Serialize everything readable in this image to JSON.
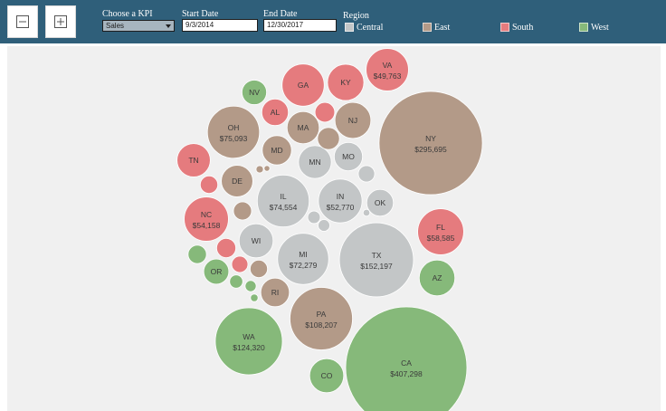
{
  "toolbar": {
    "zoom_out_icon": "minus-square-icon",
    "zoom_in_icon": "plus-square-icon",
    "kpi_label": "Choose a KPI",
    "kpi_value": "Sales",
    "start_label": "Start Date",
    "start_value": "9/3/2014",
    "end_label": "End Date",
    "end_value": "12/30/2017",
    "region_label": "Region"
  },
  "legend": [
    {
      "name": "Central",
      "color": "#c3c6c7"
    },
    {
      "name": "East",
      "color": "#b39a88"
    },
    {
      "name": "South",
      "color": "#e57b7e"
    },
    {
      "name": "West",
      "color": "#86b97a"
    }
  ],
  "chart_data": {
    "type": "bubble",
    "measure": "Sales",
    "bubbles": [
      {
        "state": "CA",
        "region": "West",
        "sales_label": "$407,298",
        "sales": 407298
      },
      {
        "state": "NY",
        "region": "East",
        "sales_label": "$295,695",
        "sales": 295695
      },
      {
        "state": "TX",
        "region": "Central",
        "sales_label": "$152,197",
        "sales": 152197
      },
      {
        "state": "WA",
        "region": "West",
        "sales_label": "$124,320",
        "sales": 124320
      },
      {
        "state": "PA",
        "region": "East",
        "sales_label": "$108,207",
        "sales": 108207
      },
      {
        "state": "OH",
        "region": "East",
        "sales_label": "$75,093",
        "sales": 75093
      },
      {
        "state": "IL",
        "region": "Central",
        "sales_label": "$74,554",
        "sales": 74554
      },
      {
        "state": "MI",
        "region": "Central",
        "sales_label": "$72,279",
        "sales": 72279
      },
      {
        "state": "FL",
        "region": "South",
        "sales_label": "$58,585",
        "sales": 58585
      },
      {
        "state": "NC",
        "region": "South",
        "sales_label": "$54,158",
        "sales": 54158
      },
      {
        "state": "IN",
        "region": "Central",
        "sales_label": "$52,770",
        "sales": 52770
      },
      {
        "state": "VA",
        "region": "South",
        "sales_label": "$49,763",
        "sales": 49763
      },
      {
        "state": "GA",
        "region": "South",
        "sales_label": "",
        "sales": 49096
      },
      {
        "state": "KY",
        "region": "South",
        "sales_label": "",
        "sales": 36592
      },
      {
        "state": "NJ",
        "region": "East",
        "sales_label": "",
        "sales": 35764
      },
      {
        "state": "MA",
        "region": "East",
        "sales_label": "",
        "sales": 28634
      },
      {
        "state": "TN",
        "region": "South",
        "sales_label": "",
        "sales": 30662
      },
      {
        "state": "AZ",
        "region": "West",
        "sales_label": "",
        "sales": 35282
      },
      {
        "state": "DE",
        "region": "East",
        "sales_label": "",
        "sales": 27451
      },
      {
        "state": "WI",
        "region": "Central",
        "sales_label": "",
        "sales": 32115
      },
      {
        "state": "MN",
        "region": "Central",
        "sales_label": "",
        "sales": 29863
      },
      {
        "state": "MD",
        "region": "East",
        "sales_label": "",
        "sales": 23706
      },
      {
        "state": "CO",
        "region": "West",
        "sales_label": "",
        "sales": 32108
      },
      {
        "state": "MO",
        "region": "Central",
        "sales_label": "",
        "sales": 22205
      },
      {
        "state": "OK",
        "region": "Central",
        "sales_label": "",
        "sales": 19683
      },
      {
        "state": "AL",
        "region": "South",
        "sales_label": "",
        "sales": 19511
      },
      {
        "state": "OR",
        "region": "West",
        "sales_label": "",
        "sales": 17431
      },
      {
        "state": "NV",
        "region": "West",
        "sales_label": "",
        "sales": 16729
      },
      {
        "state": "RI",
        "region": "East",
        "sales_label": "",
        "sales": 22628
      },
      {
        "state": "",
        "region": "South",
        "sales_label": "",
        "sales": 10771
      },
      {
        "state": "",
        "region": "South",
        "sales_label": "",
        "sales": 10172
      },
      {
        "state": "",
        "region": "South",
        "sales_label": "",
        "sales": 8481
      },
      {
        "state": "",
        "region": "South",
        "sales_label": "",
        "sales": 7292
      },
      {
        "state": "",
        "region": "East",
        "sales_label": "",
        "sales": 13384
      },
      {
        "state": "",
        "region": "East",
        "sales_label": "",
        "sales": 9063
      },
      {
        "state": "",
        "region": "East",
        "sales_label": "",
        "sales": 8361
      },
      {
        "state": "",
        "region": "East",
        "sales_label": "",
        "sales": 1512
      },
      {
        "state": "",
        "region": "East",
        "sales_label": "",
        "sales": 920
      },
      {
        "state": "",
        "region": "Central",
        "sales_label": "",
        "sales": 7465
      },
      {
        "state": "",
        "region": "Central",
        "sales_label": "",
        "sales": 4382
      },
      {
        "state": "",
        "region": "Central",
        "sales_label": "",
        "sales": 3830
      },
      {
        "state": "",
        "region": "Central",
        "sales_label": "",
        "sales": 1315
      },
      {
        "state": "",
        "region": "West",
        "sales_label": "",
        "sales": 9328
      },
      {
        "state": "",
        "region": "West",
        "sales_label": "",
        "sales": 4784
      },
      {
        "state": "",
        "region": "West",
        "sales_label": "",
        "sales": 3388
      },
      {
        "state": "",
        "region": "West",
        "sales_label": "",
        "sales": 1603
      }
    ]
  }
}
